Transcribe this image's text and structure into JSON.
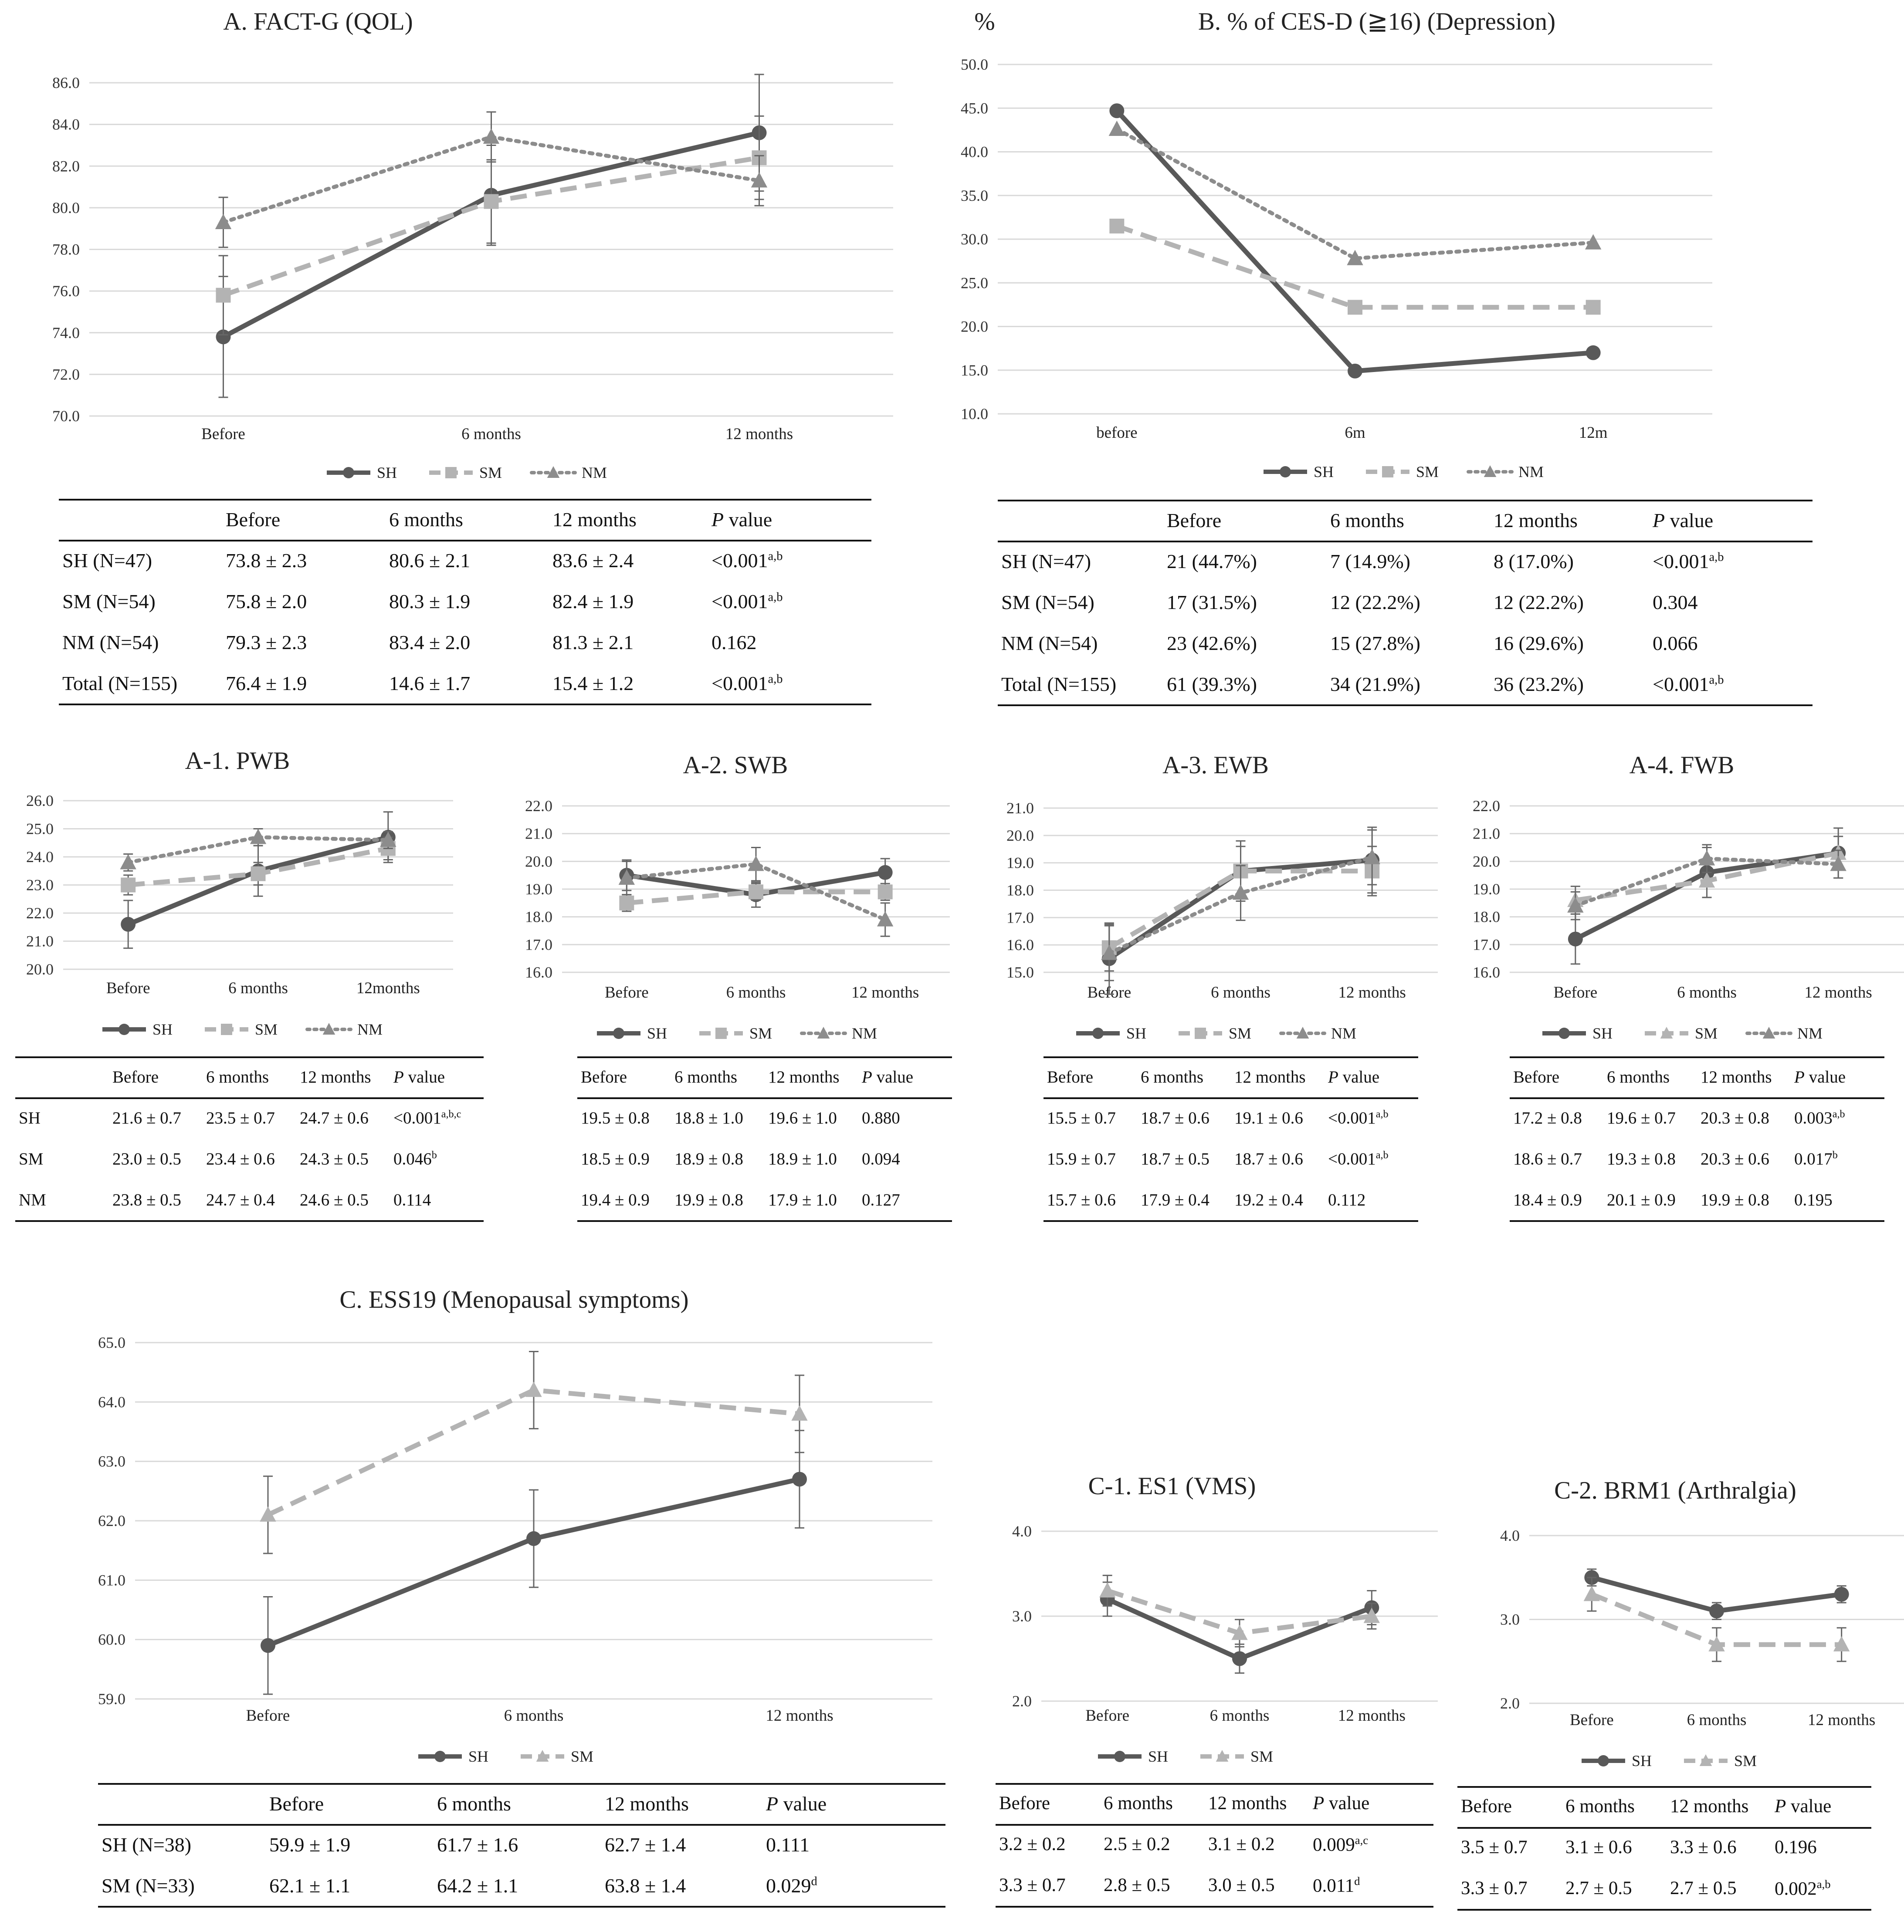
{
  "chart_data": [
    {
      "id": "A",
      "type": "line",
      "title": "A. FACT-G (QOL)",
      "categories": [
        "Before",
        "6 months",
        "12 months"
      ],
      "ylim": [
        70,
        86
      ],
      "ystep": 2,
      "ydec": 1,
      "grid": true,
      "legend_position": "bottom",
      "series": [
        {
          "name": "SH",
          "values": [
            73.8,
            80.6,
            83.6
          ],
          "err": [
            2.9,
            2.4,
            2.8
          ],
          "color": "#595959",
          "marker": "circle",
          "dash": "solid"
        },
        {
          "name": "SM",
          "values": [
            75.8,
            80.3,
            82.4
          ],
          "err": [
            1.9,
            2.0,
            2.0
          ],
          "color": "#b3b3b3",
          "marker": "square",
          "dash": "dash"
        },
        {
          "name": "NM",
          "values": [
            79.3,
            83.4,
            81.3
          ],
          "err": [
            1.2,
            1.2,
            1.2
          ],
          "color": "#8c8c8c",
          "marker": "triangle",
          "dash": "dot"
        }
      ]
    },
    {
      "id": "B",
      "type": "line",
      "title": "B. % of CES-D (≧16) (Depression)",
      "ylabel": "%",
      "categories": [
        "before",
        "6m",
        "12m"
      ],
      "ylim": [
        10,
        50
      ],
      "ystep": 5,
      "ydec": 1,
      "grid": true,
      "legend_position": "bottom",
      "series": [
        {
          "name": "SH",
          "values": [
            44.7,
            14.9,
            17.0
          ],
          "color": "#595959",
          "marker": "circle",
          "dash": "solid"
        },
        {
          "name": "SM",
          "values": [
            31.5,
            22.2,
            22.2
          ],
          "color": "#b3b3b3",
          "marker": "square",
          "dash": "dash"
        },
        {
          "name": "NM",
          "values": [
            42.6,
            27.8,
            29.6
          ],
          "color": "#8c8c8c",
          "marker": "triangle",
          "dash": "dot"
        }
      ]
    },
    {
      "id": "A1",
      "type": "line",
      "title": "A-1. PWB",
      "categories": [
        "Before",
        "6 months",
        "12months"
      ],
      "ylim": [
        20,
        26
      ],
      "ystep": 1,
      "ydec": 1,
      "grid": true,
      "legend_position": "bottom",
      "series": [
        {
          "name": "SH",
          "values": [
            21.6,
            23.5,
            24.7
          ],
          "err": [
            0.85,
            0.9,
            0.9
          ],
          "color": "#595959",
          "marker": "circle",
          "dash": "solid"
        },
        {
          "name": "SM",
          "values": [
            23.0,
            23.4,
            24.3
          ],
          "err": [
            0.35,
            0.4,
            0.4
          ],
          "color": "#b3b3b3",
          "marker": "square",
          "dash": "dash"
        },
        {
          "name": "NM",
          "values": [
            23.8,
            24.7,
            24.6
          ],
          "err": [
            0.3,
            0.3,
            0.3
          ],
          "color": "#8c8c8c",
          "marker": "triangle",
          "dash": "dot"
        }
      ]
    },
    {
      "id": "A2",
      "type": "line",
      "title": "A-2. SWB",
      "categories": [
        "Before",
        "6 months",
        "12 months"
      ],
      "ylim": [
        16,
        22
      ],
      "ystep": 1,
      "ydec": 1,
      "grid": true,
      "legend_position": "bottom",
      "series": [
        {
          "name": "SH",
          "values": [
            19.5,
            18.8,
            19.6
          ],
          "err": [
            0.55,
            0.45,
            0.5
          ],
          "color": "#595959",
          "marker": "circle",
          "dash": "solid"
        },
        {
          "name": "SM",
          "values": [
            18.5,
            18.9,
            18.9
          ],
          "err": [
            0.3,
            0.3,
            0.3
          ],
          "color": "#b3b3b3",
          "marker": "square",
          "dash": "dash"
        },
        {
          "name": "NM",
          "values": [
            19.4,
            19.9,
            17.9
          ],
          "err": [
            0.6,
            0.6,
            0.6
          ],
          "color": "#8c8c8c",
          "marker": "triangle",
          "dash": "dot"
        }
      ]
    },
    {
      "id": "A3",
      "type": "line",
      "title": "A-3. EWB",
      "categories": [
        "Before",
        "6 months",
        "12 months"
      ],
      "ylim": [
        15,
        21
      ],
      "ystep": 1,
      "ydec": 1,
      "grid": true,
      "legend_position": "bottom",
      "series": [
        {
          "name": "SH",
          "values": [
            15.5,
            18.7,
            19.1
          ],
          "err": [
            1.3,
            1.1,
            1.2
          ],
          "color": "#595959",
          "marker": "circle",
          "dash": "solid"
        },
        {
          "name": "SM",
          "values": [
            15.9,
            18.7,
            18.7
          ],
          "err": [
            0.85,
            0.9,
            0.9
          ],
          "color": "#b3b3b3",
          "marker": "square",
          "dash": "dash"
        },
        {
          "name": "NM",
          "values": [
            15.7,
            17.9,
            19.2
          ],
          "err": [
            1.0,
            1.0,
            1.0
          ],
          "color": "#8c8c8c",
          "marker": "triangle",
          "dash": "dot"
        }
      ]
    },
    {
      "id": "A4",
      "type": "line",
      "title": "A-4. FWB",
      "categories": [
        "Before",
        "6 months",
        "12 months"
      ],
      "ylim": [
        16,
        22
      ],
      "ystep": 1,
      "ydec": 1,
      "grid": true,
      "legend_position": "bottom",
      "series": [
        {
          "name": "SH",
          "values": [
            17.2,
            19.6,
            20.3
          ],
          "err": [
            0.9,
            0.9,
            0.9
          ],
          "color": "#595959",
          "marker": "circle",
          "dash": "solid"
        },
        {
          "name": "SM",
          "values": [
            18.6,
            19.3,
            20.3
          ],
          "err": [
            0.5,
            0.6,
            0.6
          ],
          "color": "#b3b3b3",
          "marker": "triangle",
          "dash": "dash"
        },
        {
          "name": "NM",
          "values": [
            18.4,
            20.1,
            19.9
          ],
          "err": [
            0.5,
            0.5,
            0.5
          ],
          "color": "#8c8c8c",
          "marker": "triangle",
          "dash": "dot"
        }
      ]
    },
    {
      "id": "C",
      "type": "line",
      "title": "C. ESS19 (Menopausal symptoms)",
      "categories": [
        "Before",
        "6 months",
        "12 months"
      ],
      "ylim": [
        59,
        65
      ],
      "ystep": 1,
      "ydec": 1,
      "grid": true,
      "legend_position": "bottom",
      "series": [
        {
          "name": "SH",
          "values": [
            59.9,
            61.7,
            62.7
          ],
          "err": [
            0.82,
            0.82,
            0.82
          ],
          "color": "#595959",
          "marker": "circle",
          "dash": "solid"
        },
        {
          "name": "SM",
          "values": [
            62.1,
            64.2,
            63.8
          ],
          "err": [
            0.65,
            0.65,
            0.65
          ],
          "color": "#b3b3b3",
          "marker": "triangle",
          "dash": "dash"
        }
      ]
    },
    {
      "id": "C1",
      "type": "line",
      "title": "C-1. ES1 (VMS)",
      "categories": [
        "Before",
        "6 months",
        "12 months"
      ],
      "ylim": [
        2,
        4
      ],
      "ystep": 1,
      "ydec": 1,
      "grid": true,
      "legend_position": "bottom",
      "series": [
        {
          "name": "SH",
          "values": [
            3.2,
            2.5,
            3.1
          ],
          "err": [
            0.2,
            0.17,
            0.2
          ],
          "color": "#595959",
          "marker": "circle",
          "dash": "solid"
        },
        {
          "name": "SM",
          "values": [
            3.3,
            2.8,
            3.0
          ],
          "err": [
            0.18,
            0.16,
            0.15
          ],
          "color": "#b3b3b3",
          "marker": "triangle",
          "dash": "dash"
        }
      ]
    },
    {
      "id": "C2",
      "type": "line",
      "title": "C-2. BRM1 (Arthralgia)",
      "categories": [
        "Before",
        "6 months",
        "12 months"
      ],
      "ylim": [
        2,
        4
      ],
      "ystep": 1,
      "ydec": 1,
      "grid": true,
      "legend_position": "bottom",
      "series": [
        {
          "name": "SH",
          "values": [
            3.5,
            3.1,
            3.3
          ],
          "err": [
            0.1,
            0.1,
            0.1
          ],
          "color": "#595959",
          "marker": "circle",
          "dash": "solid"
        },
        {
          "name": "SM",
          "values": [
            3.3,
            2.7,
            2.7
          ],
          "err": [
            0.2,
            0.2,
            0.2
          ],
          "color": "#b3b3b3",
          "marker": "triangle",
          "dash": "dash"
        }
      ]
    }
  ],
  "tables": {
    "A": {
      "header": [
        "",
        "Before",
        "6 months",
        "12 months",
        "P value"
      ],
      "rows": [
        {
          "cells": [
            "SH (N=47)",
            "73.8 ± 2.3",
            "80.6 ± 2.1",
            "83.6 ± 2.4",
            "<0.001"
          ],
          "sup": "a,b"
        },
        {
          "cells": [
            "SM (N=54)",
            "75.8 ± 2.0",
            "80.3 ± 1.9",
            "82.4 ± 1.9",
            "<0.001"
          ],
          "sup": "a,b"
        },
        {
          "cells": [
            "NM (N=54)",
            "79.3 ± 2.3",
            "83.4 ± 2.0",
            "81.3 ± 2.1",
            "0.162"
          ],
          "sup": ""
        },
        {
          "cells": [
            "Total (N=155)",
            "76.4 ± 1.9",
            "14.6 ± 1.7",
            "15.4 ± 1.2",
            "<0.001"
          ],
          "sup": "a,b"
        }
      ]
    },
    "B": {
      "header": [
        "",
        "Before",
        "6 months",
        "12 months",
        "P value"
      ],
      "rows": [
        {
          "cells": [
            "SH (N=47)",
            "21 (44.7%)",
            "7 (14.9%)",
            "8 (17.0%)",
            "<0.001"
          ],
          "sup": "a,b"
        },
        {
          "cells": [
            "SM (N=54)",
            "17 (31.5%)",
            "12 (22.2%)",
            "12 (22.2%)",
            "0.304"
          ],
          "sup": ""
        },
        {
          "cells": [
            "NM (N=54)",
            "23 (42.6%)",
            "15 (27.8%)",
            "16 (29.6%)",
            "0.066"
          ],
          "sup": ""
        },
        {
          "cells": [
            "Total (N=155)",
            "61 (39.3%)",
            "34 (21.9%)",
            "36 (23.2%)",
            "<0.001"
          ],
          "sup": "a,b"
        }
      ]
    },
    "A1": {
      "header": [
        "",
        "Before",
        "6 months",
        "12 months",
        "P value"
      ],
      "rows": [
        {
          "cells": [
            "SH",
            "21.6 ± 0.7",
            "23.5 ± 0.7",
            "24.7 ± 0.6",
            "<0.001"
          ],
          "sup": "a,b,c"
        },
        {
          "cells": [
            "SM",
            "23.0 ± 0.5",
            "23.4 ± 0.6",
            "24.3 ± 0.5",
            "0.046"
          ],
          "sup": "b"
        },
        {
          "cells": [
            "NM",
            "23.8 ± 0.5",
            "24.7 ± 0.4",
            "24.6 ± 0.5",
            "0.114"
          ],
          "sup": ""
        }
      ]
    },
    "A2": {
      "header": [
        "Before",
        "6 months",
        "12 months",
        "P value"
      ],
      "rows": [
        {
          "cells": [
            "19.5 ± 0.8",
            "18.8 ± 1.0",
            "19.6 ± 1.0",
            "0.880"
          ],
          "sup": ""
        },
        {
          "cells": [
            "18.5 ± 0.9",
            "18.9 ± 0.8",
            "18.9 ± 1.0",
            "0.094"
          ],
          "sup": ""
        },
        {
          "cells": [
            "19.4 ± 0.9",
            "19.9 ± 0.8",
            "17.9 ± 1.0",
            "0.127"
          ],
          "sup": ""
        }
      ]
    },
    "A3": {
      "header": [
        "Before",
        "6 months",
        "12 months",
        "P value"
      ],
      "rows": [
        {
          "cells": [
            "15.5 ± 0.7",
            "18.7 ± 0.6",
            "19.1 ± 0.6",
            "<0.001"
          ],
          "sup": "a,b"
        },
        {
          "cells": [
            "15.9 ± 0.7",
            "18.7 ± 0.5",
            "18.7 ± 0.6",
            "<0.001"
          ],
          "sup": "a,b"
        },
        {
          "cells": [
            "15.7 ± 0.6",
            "17.9 ± 0.4",
            "19.2 ± 0.4",
            "0.112"
          ],
          "sup": ""
        }
      ]
    },
    "A4": {
      "header": [
        "Before",
        "6 months",
        "12 months",
        "P value"
      ],
      "rows": [
        {
          "cells": [
            "17.2 ± 0.8",
            "19.6 ± 0.7",
            "20.3 ± 0.8",
            "0.003"
          ],
          "sup": "a,b"
        },
        {
          "cells": [
            "18.6 ± 0.7",
            "19.3 ± 0.8",
            "20.3 ± 0.6",
            "0.017"
          ],
          "sup": "b"
        },
        {
          "cells": [
            "18.4 ± 0.9",
            "20.1 ± 0.9",
            "19.9 ± 0.8",
            "0.195"
          ],
          "sup": ""
        }
      ]
    },
    "C": {
      "header": [
        "",
        "Before",
        "6 months",
        "12 months",
        "P value"
      ],
      "rows": [
        {
          "cells": [
            "SH (N=38)",
            "59.9 ± 1.9",
            "61.7 ± 1.6",
            "62.7 ± 1.4",
            "0.111"
          ],
          "sup": ""
        },
        {
          "cells": [
            "SM (N=33)",
            "62.1 ± 1.1",
            "64.2 ± 1.1",
            "63.8 ± 1.4",
            "0.029"
          ],
          "sup": "d"
        }
      ]
    },
    "C1": {
      "header": [
        "Before",
        "6 months",
        "12 months",
        "P value"
      ],
      "rows": [
        {
          "cells": [
            "3.2 ± 0.2",
            "2.5 ± 0.2",
            "3.1 ± 0.2",
            "0.009"
          ],
          "sup": "a,c"
        },
        {
          "cells": [
            "3.3 ± 0.7",
            "2.8 ± 0.5",
            "3.0 ± 0.5",
            "0.011"
          ],
          "sup": "d"
        }
      ]
    },
    "C2": {
      "header": [
        "Before",
        "6 months",
        "12 months",
        "P value"
      ],
      "rows": [
        {
          "cells": [
            "3.5 ± 0.7",
            "3.1 ± 0.6",
            "3.3 ± 0.6",
            "0.196"
          ],
          "sup": ""
        },
        {
          "cells": [
            "3.3 ± 0.7",
            "2.7 ± 0.5",
            "2.7 ± 0.5",
            "0.002"
          ],
          "sup": "a,b"
        }
      ]
    }
  }
}
